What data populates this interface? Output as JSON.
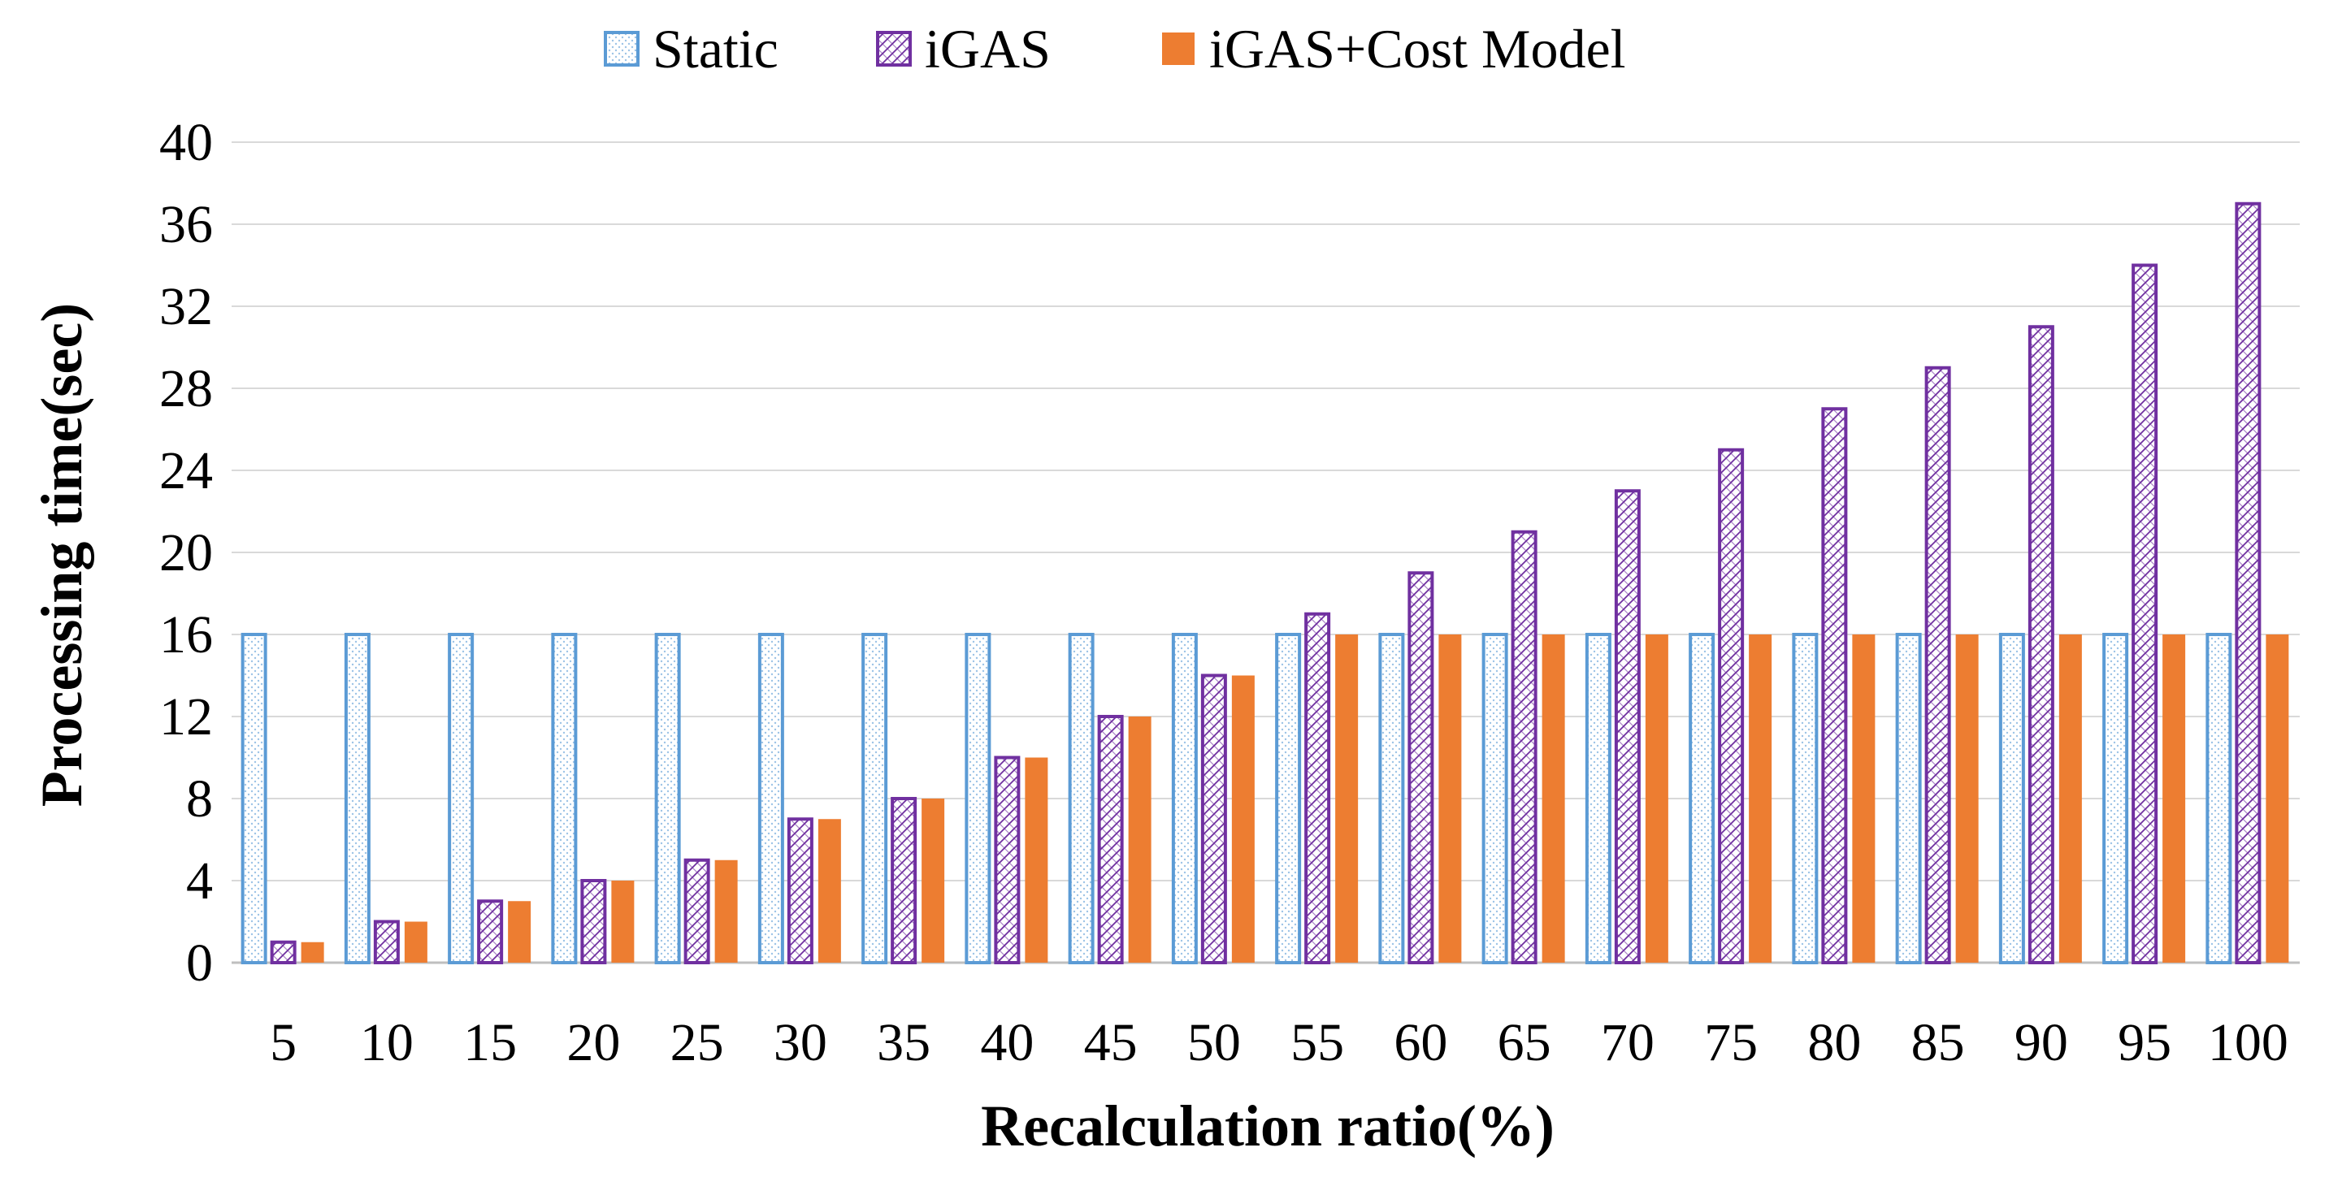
{
  "chart_data": {
    "type": "bar",
    "title": "",
    "xlabel": "Recalculation ratio(%)",
    "ylabel": "Processing time(sec)",
    "ylim": [
      0,
      40
    ],
    "yticks": [
      0,
      4,
      8,
      12,
      16,
      20,
      24,
      28,
      32,
      36,
      40
    ],
    "grid": true,
    "legend_position": "top-center",
    "categories": [
      "5",
      "10",
      "15",
      "20",
      "25",
      "30",
      "35",
      "40",
      "45",
      "50",
      "55",
      "60",
      "65",
      "70",
      "75",
      "80",
      "85",
      "90",
      "95",
      "100"
    ],
    "series": [
      {
        "name": "Static",
        "style": "outline-dotted",
        "color": "#5B9BD5",
        "values": [
          16,
          16,
          16,
          16,
          16,
          16,
          16,
          16,
          16,
          16,
          16,
          16,
          16,
          16,
          16,
          16,
          16,
          16,
          16,
          16
        ]
      },
      {
        "name": "iGAS",
        "style": "outline-hatched",
        "color": "#7030A0",
        "values": [
          1,
          2,
          3,
          4,
          5,
          7,
          8,
          10,
          12,
          14,
          17,
          19,
          21,
          23,
          25,
          27,
          29,
          31,
          34,
          37
        ]
      },
      {
        "name": "iGAS+Cost Model",
        "style": "solid",
        "color": "#ED7D31",
        "values": [
          1,
          2,
          3,
          4,
          5,
          7,
          8,
          10,
          12,
          14,
          16,
          16,
          16,
          16,
          16,
          16,
          16,
          16,
          16,
          16
        ]
      }
    ]
  }
}
